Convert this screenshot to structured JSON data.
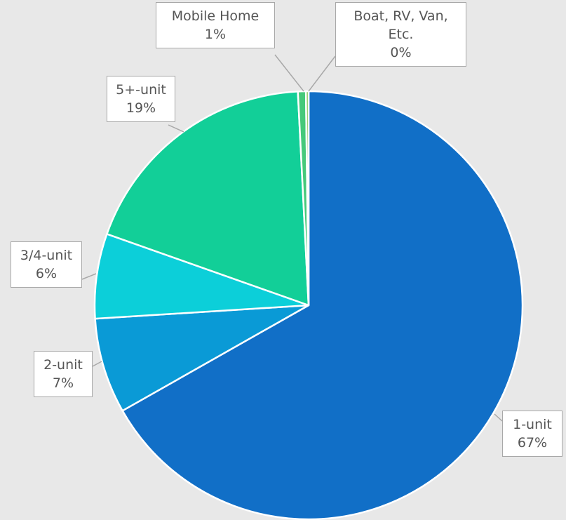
{
  "chart_data": {
    "type": "pie",
    "categories": [
      "1-unit",
      "2-unit",
      "3/4-unit",
      "5+-unit",
      "Mobile Home",
      "Boat, RV, Van, Etc."
    ],
    "values": [
      66.8,
      7.2,
      6.4,
      18.8,
      0.6,
      0.2
    ],
    "value_labels": [
      "67%",
      "7%",
      "6%",
      "19%",
      "1%",
      "0%"
    ],
    "colors": [
      "#116fc7",
      "#0a9ad6",
      "#0ccfd9",
      "#12cf98",
      "#45c97a",
      "#7cc24a"
    ]
  }
}
